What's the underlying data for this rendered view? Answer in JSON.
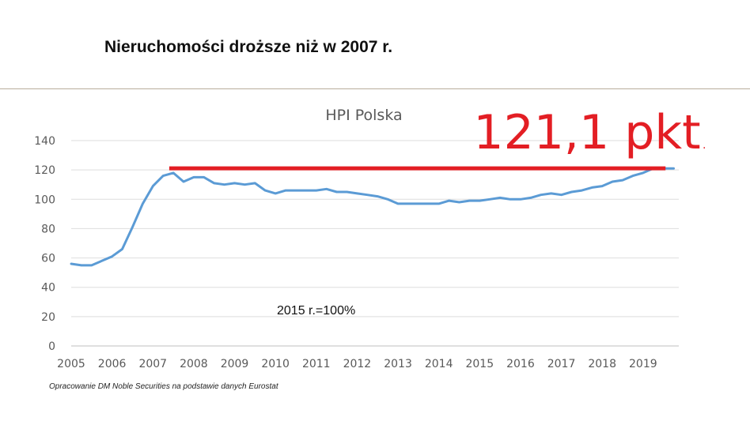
{
  "slide": {
    "title": "Nieruchomości droższe niż w 2007 r.",
    "source_note": "Opracowanie DM Noble Securities na podstawie danych Eurostat"
  },
  "chart_data": {
    "type": "line",
    "title": "HPI Polska",
    "xlabel": "",
    "ylabel": "",
    "ylim": [
      0,
      140
    ],
    "yticks": [
      0,
      20,
      40,
      60,
      80,
      100,
      120,
      140
    ],
    "xlim": [
      2005,
      2019.875
    ],
    "xticks": [
      2005,
      2006,
      2007,
      2008,
      2009,
      2010,
      2011,
      2012,
      2013,
      2014,
      2015,
      2016,
      2017,
      2018,
      2019
    ],
    "grid": true,
    "legend": "none",
    "series": [
      {
        "color": "#5b9bd5",
        "x": [
          2005.0,
          2005.25,
          2005.5,
          2005.75,
          2006.0,
          2006.25,
          2006.5,
          2006.75,
          2007.0,
          2007.25,
          2007.5,
          2007.75,
          2008.0,
          2008.25,
          2008.5,
          2008.75,
          2009.0,
          2009.25,
          2009.5,
          2009.75,
          2010.0,
          2010.25,
          2010.5,
          2010.75,
          2011.0,
          2011.25,
          2011.5,
          2011.75,
          2012.0,
          2012.25,
          2012.5,
          2012.75,
          2013.0,
          2013.25,
          2013.5,
          2013.75,
          2014.0,
          2014.25,
          2014.5,
          2014.75,
          2015.0,
          2015.25,
          2015.5,
          2015.75,
          2016.0,
          2016.25,
          2016.5,
          2016.75,
          2017.0,
          2017.25,
          2017.5,
          2017.75,
          2018.0,
          2018.25,
          2018.5,
          2018.75,
          2019.0,
          2019.25,
          2019.5,
          2019.75
        ],
        "values": [
          56,
          55,
          55,
          58,
          61,
          66,
          81,
          97,
          109,
          116,
          118,
          112,
          115,
          115,
          111,
          110,
          111,
          110,
          111,
          106,
          104,
          106,
          106,
          106,
          106,
          107,
          105,
          105,
          104,
          103,
          102,
          100,
          97,
          97,
          97,
          97,
          97,
          99,
          98,
          99,
          99,
          100,
          101,
          100,
          100,
          101,
          103,
          104,
          103,
          105,
          106,
          108,
          109,
          112,
          113,
          116,
          118,
          121,
          121,
          121
        ]
      }
    ],
    "annotations": {
      "highlight_label": "121,1 pkt",
      "highlight_dot": ".",
      "highlight_value": 121.1,
      "highlight_color": "#e31e24",
      "base_note": "2015 r.=100%"
    }
  }
}
